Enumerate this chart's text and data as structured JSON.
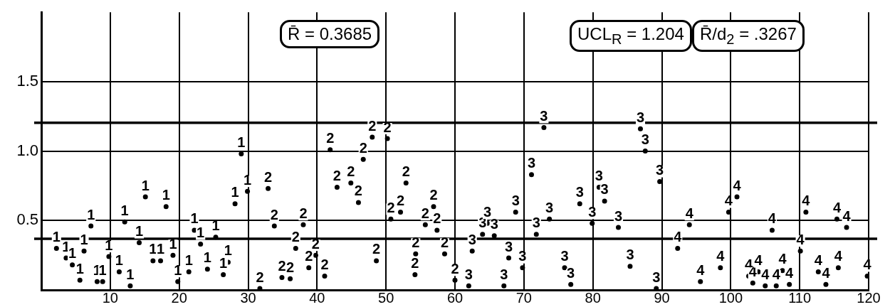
{
  "chart_data": {
    "type": "scatter",
    "xlim": [
      0,
      120
    ],
    "ylim": [
      0,
      2
    ],
    "xticks": [
      10,
      20,
      30,
      40,
      50,
      60,
      70,
      80,
      90,
      100,
      110,
      120
    ],
    "yticks": [
      0.5,
      {
        "value": 1,
        "label": "1.0"
      },
      1.5
    ],
    "grid": true,
    "ref_lines": [
      {
        "axis": "y",
        "value": 1.204,
        "color": "#000000"
      },
      {
        "axis": "y",
        "value": 0.3685,
        "color": "#000000"
      }
    ],
    "annotations": [
      "R̄ = 0.3685",
      "UCL$_{R}$ = 1.204",
      "R̄/d$_{2}$ = .3267"
    ],
    "series": [
      {
        "name": "1",
        "color": "#000000",
        "x": [
          2.2,
          3.6,
          4.5,
          5.6,
          6.2,
          7.2,
          8.1,
          8.9,
          9.8,
          11.3,
          12.1,
          12.9,
          14.2,
          15.1,
          16.2,
          17.3,
          18.1,
          19.1,
          19.8,
          21.4,
          22.2,
          23.1,
          24.1,
          25.3,
          26.4,
          27.1,
          28.1,
          29.0,
          29.9
        ],
        "values": [
          0.3,
          0.23,
          0.18,
          0.07,
          0.28,
          0.46,
          0.06,
          0.06,
          0.24,
          0.13,
          0.49,
          0.03,
          0.34,
          0.67,
          0.21,
          0.21,
          0.6,
          0.25,
          0.06,
          0.13,
          0.43,
          0.33,
          0.15,
          0.38,
          0.11,
          0.2,
          0.62,
          0.98,
          0.71
        ]
      },
      {
        "name": "2",
        "color": "#000000",
        "x": [
          31.7,
          32.9,
          33.8,
          34.9,
          36.1,
          36.9,
          38.0,
          38.8,
          39.8,
          41.1,
          41.9,
          42.9,
          44.9,
          46.0,
          46.7,
          48.0,
          48.6,
          50.2,
          50.7,
          52.1,
          52.9,
          54.2,
          54.3,
          55.7,
          56.9,
          57.4,
          58.5,
          60.0
        ],
        "values": [
          0.01,
          0.73,
          0.46,
          0.09,
          0.08,
          0.3,
          0.47,
          0.16,
          0.25,
          0.1,
          1.01,
          0.74,
          0.77,
          0.63,
          0.94,
          1.1,
          0.21,
          1.09,
          0.51,
          0.56,
          0.77,
          0.11,
          0.26,
          0.47,
          0.6,
          0.43,
          0.26,
          0.07
        ]
      },
      {
        "name": "3",
        "color": "#000000",
        "x": [
          62.0,
          62.5,
          64.0,
          64.7,
          65.7,
          67.1,
          67.8,
          68.8,
          69.8,
          71.1,
          71.8,
          72.9,
          73.7,
          75.9,
          76.8,
          78.1,
          79.9,
          80.9,
          81.7,
          83.7,
          85.4,
          86.9,
          87.6,
          89.2,
          89.7
        ],
        "values": [
          0.03,
          0.28,
          0.4,
          0.48,
          0.39,
          0.03,
          0.23,
          0.56,
          0.16,
          0.83,
          0.4,
          1.17,
          0.51,
          0.16,
          0.04,
          0.62,
          0.48,
          0.74,
          0.64,
          0.45,
          0.17,
          1.16,
          1.0,
          0.01,
          0.78
        ]
      },
      {
        "name": "4",
        "color": "#000000",
        "x": [
          92.3,
          94.0,
          95.6,
          98.5,
          99.7,
          100.9,
          102.6,
          103.2,
          104.0,
          105.0,
          106.0,
          106.6,
          107.5,
          108.5,
          110.1,
          110.9,
          112.7,
          113.8,
          115.4,
          115.6,
          116.8,
          119.8
        ],
        "values": [
          0.3,
          0.47,
          0.06,
          0.16,
          0.56,
          0.67,
          0.1,
          0.05,
          0.13,
          0.03,
          0.43,
          0.03,
          0.14,
          0.04,
          0.28,
          0.56,
          0.13,
          0.04,
          0.51,
          0.16,
          0.45,
          0.1
        ]
      }
    ]
  }
}
